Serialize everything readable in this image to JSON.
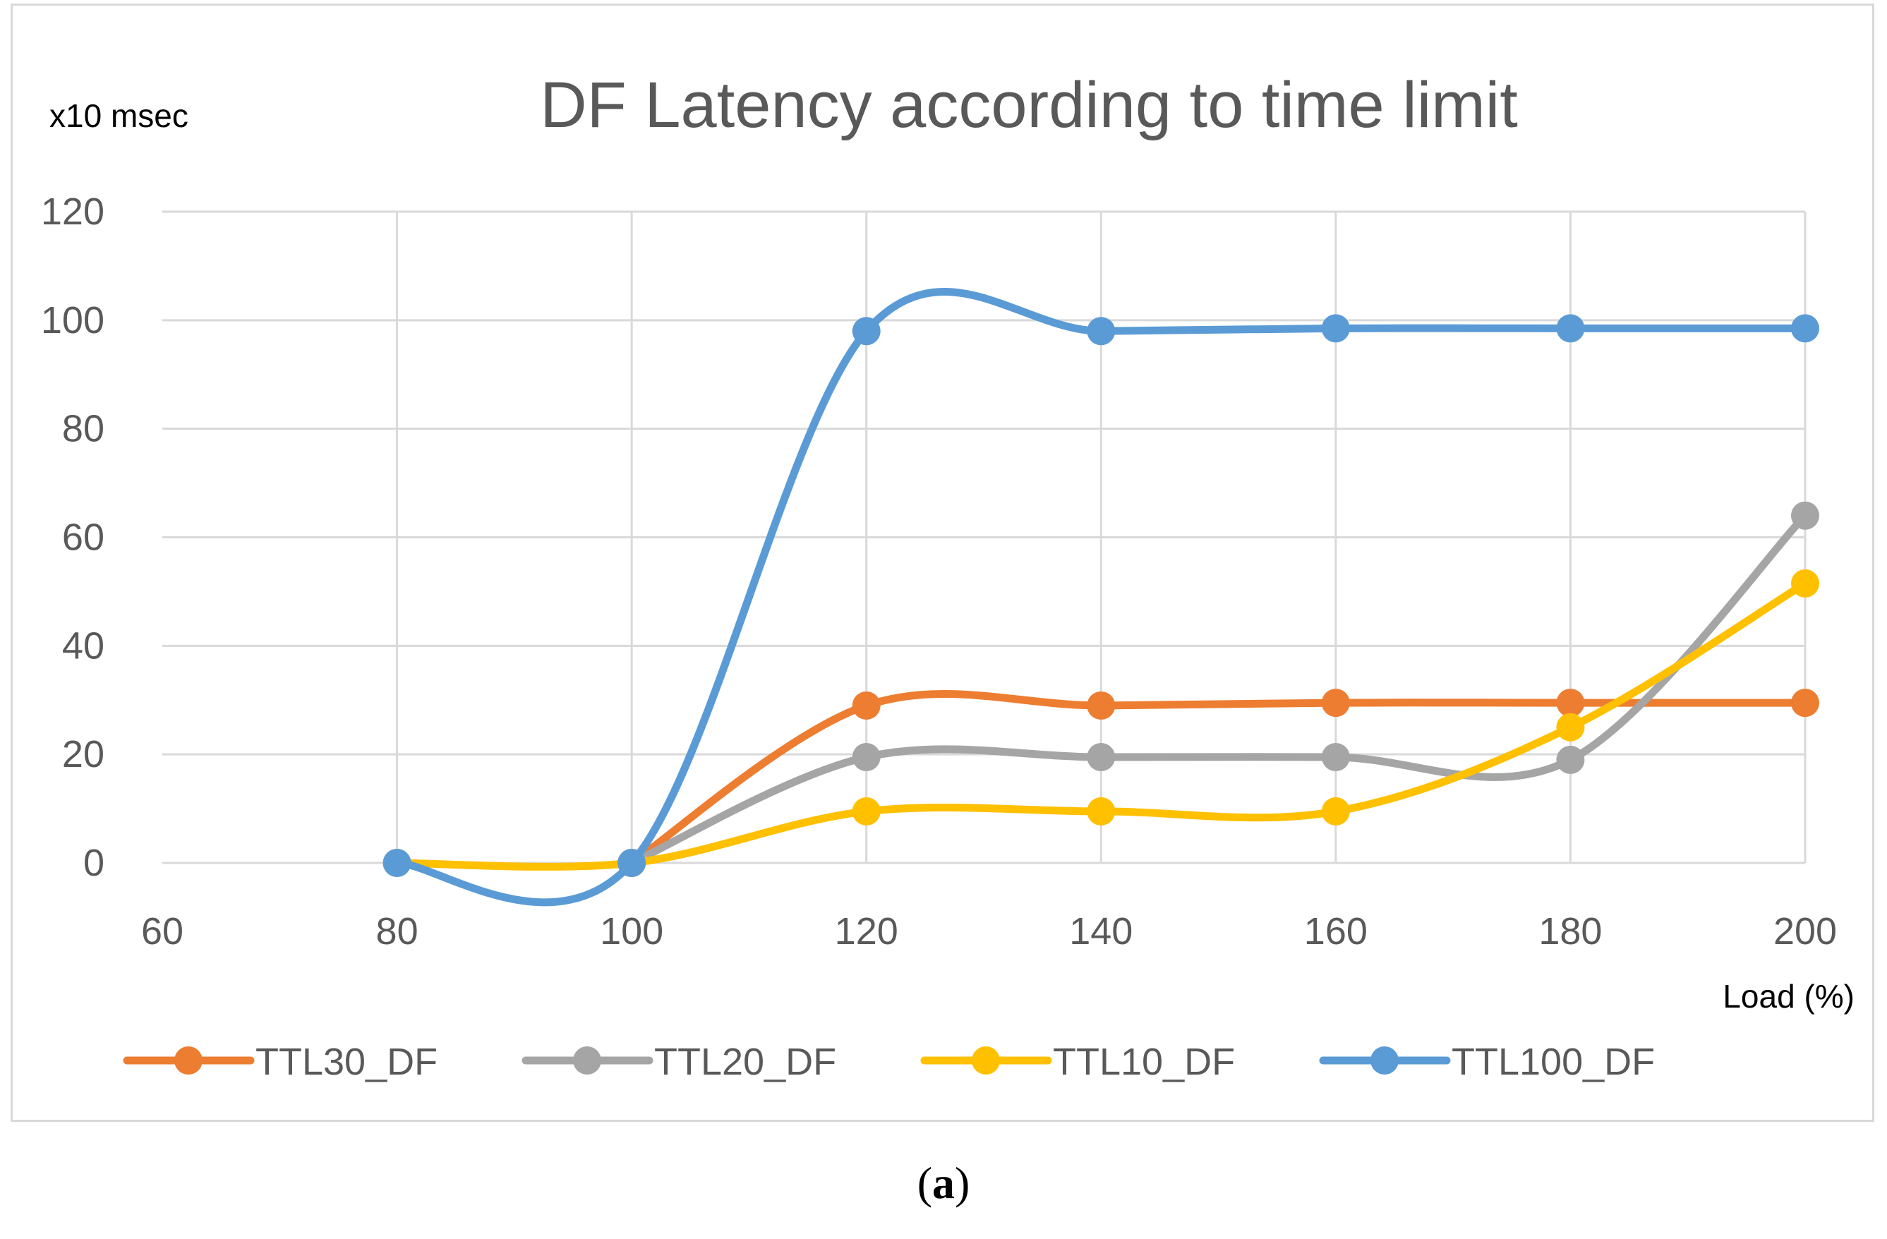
{
  "caption": {
    "open": "(",
    "letter": "a",
    "close": ")"
  },
  "chart_data": {
    "type": "line",
    "title": "DF Latency according to time limit",
    "ylabel": "x10 msec",
    "xlabel": "Load (%)",
    "x_ticks": [
      60,
      80,
      100,
      120,
      140,
      160,
      180,
      200
    ],
    "y_ticks": [
      0,
      20,
      40,
      60,
      80,
      100,
      120
    ],
    "xlim": [
      60,
      200
    ],
    "ylim": [
      0,
      120
    ],
    "grid": true,
    "smooth": true,
    "legend_position": "bottom",
    "series": [
      {
        "name": "TTL30_DF",
        "color": "#ED7D31",
        "x": [
          100,
          120,
          140,
          160,
          180,
          200
        ],
        "values": [
          0,
          29,
          29,
          29.5,
          29.5,
          29.5
        ]
      },
      {
        "name": "TTL20_DF",
        "color": "#A5A5A5",
        "x": [
          100,
          120,
          140,
          160,
          180,
          200
        ],
        "values": [
          0,
          19.5,
          19.5,
          19.5,
          19,
          64
        ]
      },
      {
        "name": "TTL10_DF",
        "color": "#FFC000",
        "x": [
          80,
          100,
          120,
          140,
          160,
          180,
          200
        ],
        "values": [
          0,
          0,
          9.5,
          9.5,
          9.5,
          25,
          51.5
        ]
      },
      {
        "name": "TTL100_DF",
        "color": "#5B9BD5",
        "x": [
          80,
          100,
          120,
          140,
          160,
          180,
          200
        ],
        "values": [
          0,
          0,
          98,
          98,
          98.5,
          98.5,
          98.5
        ]
      }
    ]
  }
}
